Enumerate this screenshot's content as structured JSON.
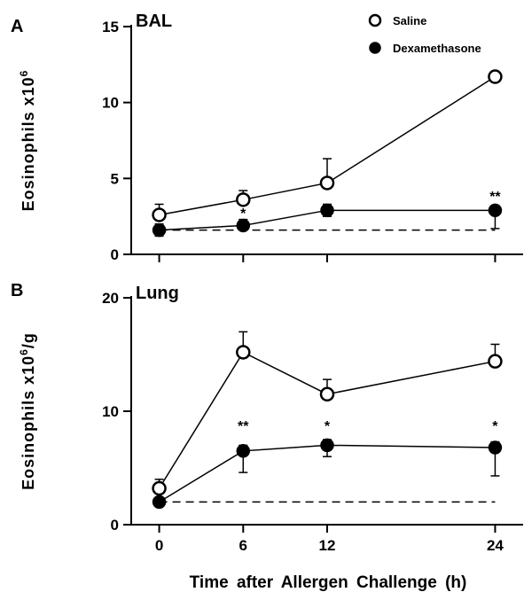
{
  "legend": [
    {
      "label": "Saline",
      "marker": "open-circle"
    },
    {
      "label": "Dexamethasone",
      "marker": "filled-circle"
    }
  ],
  "xlabel": "Time after Allergen Challenge (h)",
  "chart_data": [
    {
      "panel": "A",
      "type": "line",
      "title": "BAL",
      "ylabel": "Eosinophils x10",
      "ylabel_sup": "6",
      "ylabel_suffix": "",
      "x": [
        0,
        6,
        12,
        24
      ],
      "xticks": [
        "0",
        "6",
        "12",
        "24"
      ],
      "xlim": [
        -2,
        26
      ],
      "ylim": [
        0,
        15
      ],
      "yticks": [
        0,
        5,
        10,
        15
      ],
      "series": [
        {
          "name": "Saline",
          "marker": "open-circle",
          "values": [
            2.6,
            3.6,
            4.7,
            11.7
          ],
          "errors": [
            0.7,
            0.6,
            1.6,
            0.35
          ]
        },
        {
          "name": "Dexamethasone",
          "marker": "filled-circle",
          "values": [
            1.6,
            1.9,
            2.9,
            2.9
          ],
          "errors": [
            0.4,
            0.4,
            0.4,
            0.3
          ],
          "errors_lower": [
            0.4,
            0.3,
            0.4,
            1.2
          ]
        }
      ],
      "baseline": 1.6,
      "significance": [
        {
          "x": 6,
          "y": 2.4,
          "text": "*"
        },
        {
          "x": 24,
          "y": 3.5,
          "text": "**"
        }
      ]
    },
    {
      "panel": "B",
      "type": "line",
      "title": "Lung",
      "ylabel": "Eosinophils x10",
      "ylabel_sup": "6",
      "ylabel_suffix": "/g",
      "x": [
        0,
        6,
        12,
        24
      ],
      "xticks": [
        "0",
        "6",
        "12",
        "24"
      ],
      "xlim": [
        -2,
        26
      ],
      "ylim": [
        0,
        20
      ],
      "yticks": [
        0,
        10,
        20
      ],
      "series": [
        {
          "name": "Saline",
          "marker": "open-circle",
          "values": [
            3.2,
            15.2,
            11.5,
            14.4
          ],
          "errors": [
            0.8,
            1.8,
            1.3,
            1.5
          ]
        },
        {
          "name": "Dexamethasone",
          "marker": "filled-circle",
          "values": [
            2.0,
            6.5,
            7.0,
            6.8
          ],
          "errors": [
            0.3,
            0.5,
            0.5,
            0.5
          ],
          "errors_lower": [
            0.3,
            1.9,
            1.0,
            2.5
          ]
        }
      ],
      "baseline": 2.0,
      "significance": [
        {
          "x": 6,
          "y": 8.3,
          "text": "**"
        },
        {
          "x": 12,
          "y": 8.3,
          "text": "*"
        },
        {
          "x": 24,
          "y": 8.3,
          "text": "*"
        }
      ]
    }
  ]
}
